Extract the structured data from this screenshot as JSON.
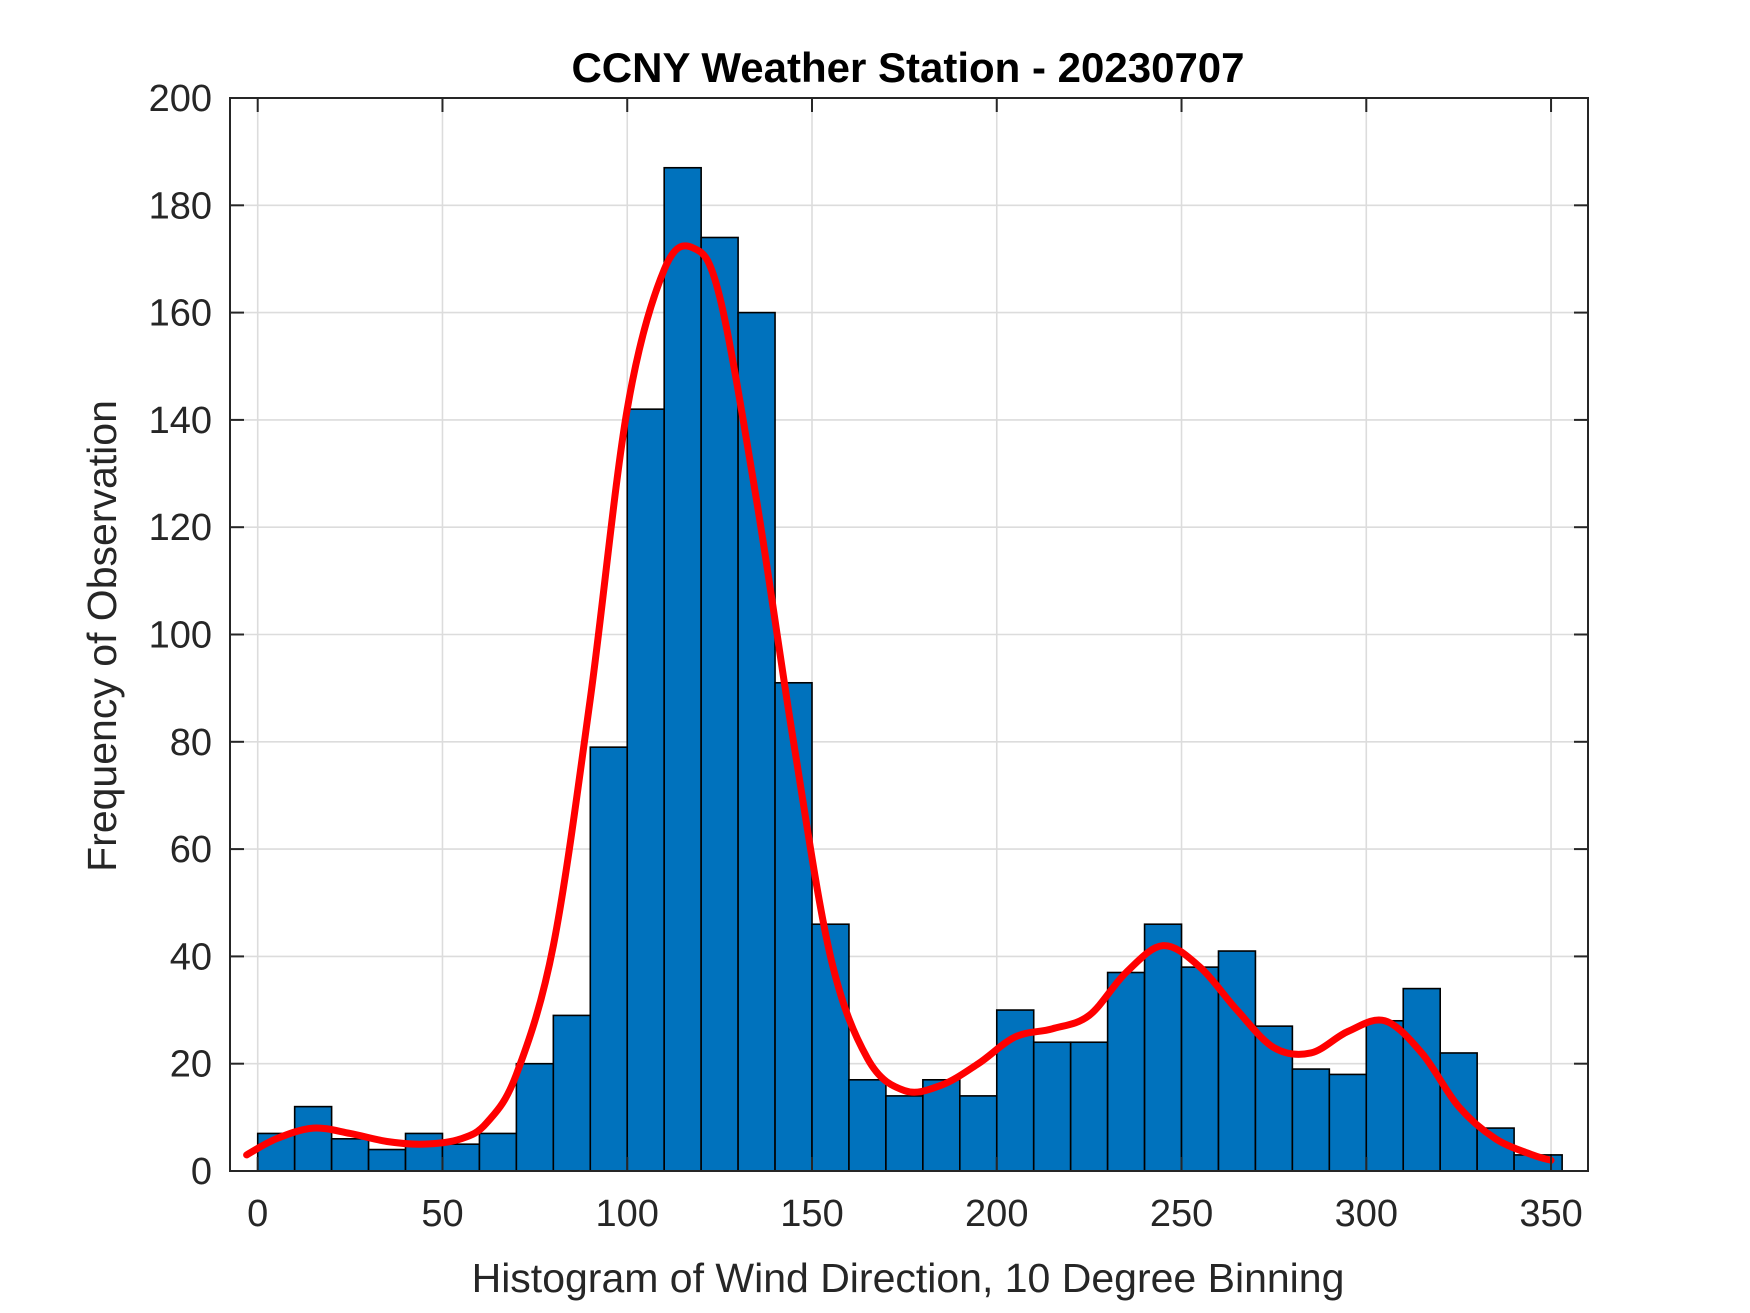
{
  "chart_data": {
    "type": "bar",
    "title": "CCNY Weather Station - 20230707",
    "xlabel": "Histogram of Wind Direction, 10 Degree Binning",
    "ylabel": "Frequency of Observation",
    "xlim": [
      -7.5,
      360
    ],
    "ylim": [
      0,
      200
    ],
    "xticks": [
      0,
      50,
      100,
      150,
      200,
      250,
      300,
      350
    ],
    "yticks": [
      0,
      20,
      40,
      60,
      80,
      100,
      120,
      140,
      160,
      180,
      200
    ],
    "grid": true,
    "bin_width": 10,
    "bin_edges_start": [
      0,
      10,
      20,
      30,
      40,
      50,
      60,
      70,
      80,
      90,
      100,
      110,
      120,
      130,
      140,
      150,
      160,
      170,
      180,
      190,
      200,
      210,
      220,
      230,
      240,
      250,
      260,
      270,
      280,
      290,
      300,
      310,
      320,
      330,
      340
    ],
    "values": [
      7,
      12,
      6,
      4,
      7,
      5,
      7,
      20,
      29,
      79,
      142,
      187,
      174,
      160,
      91,
      46,
      17,
      14,
      17,
      14,
      30,
      24,
      24,
      37,
      46,
      38,
      41,
      27,
      19,
      18,
      28,
      34,
      22,
      8,
      3
    ],
    "last_bin": {
      "start": 350,
      "width": 3,
      "value": 3
    },
    "fit_curve": {
      "x": [
        -3,
        5,
        15,
        25,
        35,
        45,
        55,
        62,
        70,
        80,
        90,
        100,
        110,
        118,
        125,
        135,
        145,
        155,
        165,
        175,
        185,
        195,
        205,
        215,
        225,
        235,
        245,
        255,
        265,
        275,
        285,
        295,
        305,
        315,
        325,
        335,
        345,
        350
      ],
      "y": [
        3,
        6,
        8,
        7,
        5.5,
        5,
        6,
        9,
        18,
        42,
        88,
        142,
        168,
        172,
        163,
        125,
        80,
        40,
        21,
        15,
        16,
        20,
        25,
        26.5,
        29,
        37,
        42,
        38,
        30,
        23,
        22,
        26,
        28,
        22,
        12,
        6,
        3,
        2
      ]
    },
    "colors": {
      "bars": "#0072bd",
      "fit": "#ff0000"
    }
  }
}
